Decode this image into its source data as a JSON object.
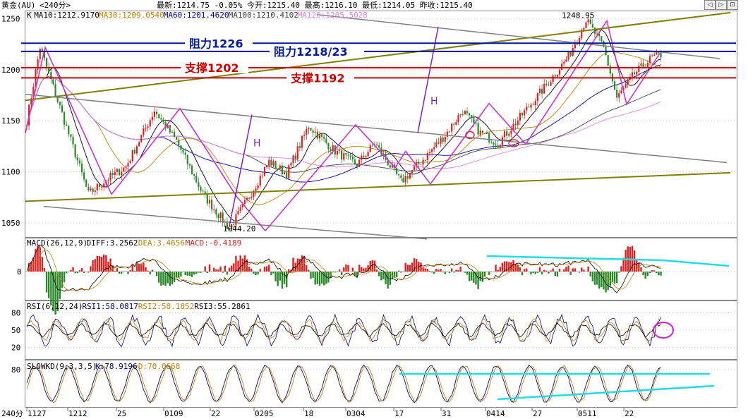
{
  "header": {
    "instrument": "黄金(AU)",
    "period": "<240分>",
    "quote_line": "最新:1214.75 -0.05% 今开:1215.40 最高:1216.10 最低:1214.05 昨收:1215.40"
  },
  "toolbar": {
    "buttons": [
      "◁",
      "▷",
      "⊡"
    ]
  },
  "colors": {
    "background": "#ffffff",
    "up_candle": "#e02020",
    "down_candle": "#2a8a2a",
    "ma10": "#000000",
    "ma30": "#c08000",
    "ma60": "#0000a0",
    "ma100": "#404040",
    "ma120": "#e080e0",
    "resistance": "#001a99",
    "support": "#cc0000",
    "trend_olive": "#808000",
    "trend_grey": "#808080",
    "pattern_magenta": "#cc33cc",
    "measure_purple": "#7b22c8",
    "cyan": "#22dddd"
  },
  "chart_data": [
    {
      "type": "candlestick",
      "title": "K",
      "legend": [
        {
          "label": "MA10:1212.9170",
          "color": "#000000"
        },
        {
          "label": "MA30:1209.0540",
          "color": "#c08000"
        },
        {
          "label": "MA60:1201.4620",
          "color": "#0000a0"
        },
        {
          "label": "MA100:1210.4102",
          "color": "#404040"
        },
        {
          "label": "MA120:1205.5028",
          "color": "#e080e0"
        }
      ],
      "y_ticks": [
        1250,
        1200,
        1150,
        1100,
        1050
      ],
      "ylim": [
        1036,
        1258
      ],
      "x_ticks": [
        "1127",
        "1212",
        "25",
        "0109",
        "22",
        "0205",
        "18",
        "0304",
        "17",
        "31",
        "0414",
        "27",
        "0511",
        "22"
      ],
      "price_path": [
        {
          "i": 0,
          "v": 1150
        },
        {
          "i": 6,
          "v": 1222
        },
        {
          "i": 12,
          "v": 1183
        },
        {
          "i": 28,
          "v": 1078
        },
        {
          "i": 36,
          "v": 1092
        },
        {
          "i": 45,
          "v": 1105
        },
        {
          "i": 58,
          "v": 1160
        },
        {
          "i": 68,
          "v": 1130
        },
        {
          "i": 80,
          "v": 1078
        },
        {
          "i": 92,
          "v": 1044.2
        },
        {
          "i": 100,
          "v": 1072
        },
        {
          "i": 110,
          "v": 1110
        },
        {
          "i": 118,
          "v": 1098
        },
        {
          "i": 128,
          "v": 1145
        },
        {
          "i": 140,
          "v": 1120
        },
        {
          "i": 150,
          "v": 1107
        },
        {
          "i": 158,
          "v": 1128
        },
        {
          "i": 170,
          "v": 1090
        },
        {
          "i": 180,
          "v": 1112
        },
        {
          "i": 190,
          "v": 1136
        },
        {
          "i": 198,
          "v": 1160
        },
        {
          "i": 206,
          "v": 1138
        },
        {
          "i": 214,
          "v": 1128
        },
        {
          "i": 222,
          "v": 1148
        },
        {
          "i": 236,
          "v": 1185
        },
        {
          "i": 246,
          "v": 1213
        },
        {
          "i": 254,
          "v": 1248.95
        },
        {
          "i": 262,
          "v": 1222
        },
        {
          "i": 268,
          "v": 1172
        },
        {
          "i": 276,
          "v": 1196
        },
        {
          "i": 284,
          "v": 1212
        },
        {
          "i": 288,
          "v": 1214.75
        }
      ],
      "annotations": {
        "high_label": "1248.95",
        "low_label": "1044.20",
        "levels": [
          {
            "label": "阻力1226",
            "value": 1226,
            "color": "#001a99"
          },
          {
            "label": "阻力1218/23",
            "value": 1218,
            "color": "#001a99"
          },
          {
            "label": "支撑1202",
            "value": 1202,
            "color": "#cc0000"
          },
          {
            "label": "支撑1192",
            "value": 1192,
            "color": "#cc0000"
          }
        ],
        "measure_label": "H"
      }
    },
    {
      "type": "bar",
      "title": "MACD(26,12,9)",
      "legend": [
        {
          "label": "DIFF:3.2562",
          "color": "#000000"
        },
        {
          "label": "DEA:3.4656",
          "color": "#c08000"
        },
        {
          "label": "MACD:-0.4189",
          "color": "#e02020"
        }
      ],
      "y_ticks": [
        0
      ]
    },
    {
      "type": "line",
      "title": "RSI(6,12,24)",
      "legend": [
        {
          "label": "RSI1:58.0817",
          "color": "#000080"
        },
        {
          "label": "RSI2:58.1852",
          "color": "#c08000"
        },
        {
          "label": "RSI3:55.2861",
          "color": "#000000"
        }
      ],
      "y_ticks": [
        80,
        50,
        20
      ],
      "ylim": [
        0,
        100
      ]
    },
    {
      "type": "line",
      "title": "SLOWKD(9,3,3,5)",
      "legend": [
        {
          "label": "K:78.9196",
          "color": "#000080"
        },
        {
          "label": "D:70.0668",
          "color": "#c08000"
        }
      ],
      "y_ticks": [
        80
      ]
    }
  ],
  "footer": {
    "period_label": "240分"
  }
}
